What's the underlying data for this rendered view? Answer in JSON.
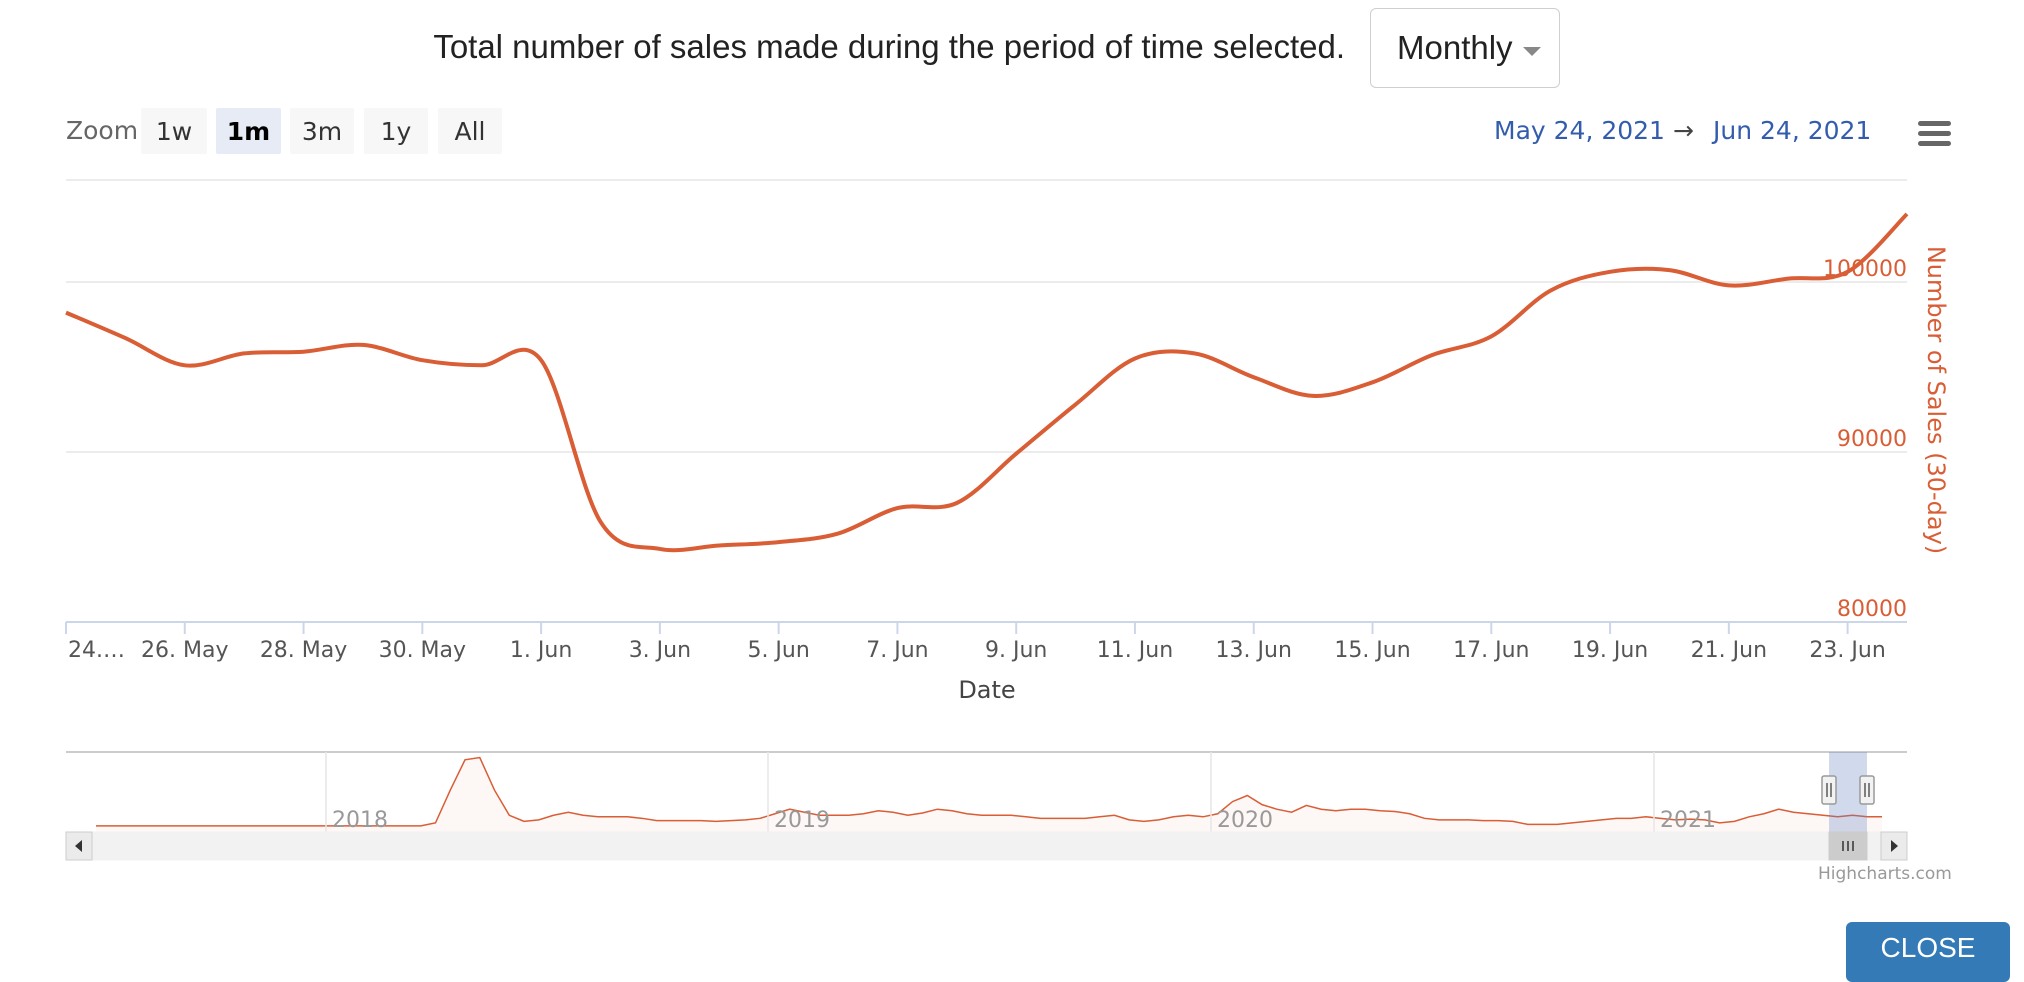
{
  "header": {
    "description": "Total number of sales made during the period of time selected.",
    "period_selected": "Monthly"
  },
  "toolbar": {
    "zoom_label": "Zoom",
    "zoom_buttons": [
      "1w",
      "1m",
      "3m",
      "1y",
      "All"
    ],
    "zoom_active": "1m",
    "range_from": "May 24, 2021",
    "range_arrow": "→",
    "range_to": "Jun 24, 2021"
  },
  "chart_data": {
    "type": "line",
    "title": "",
    "xlabel": "Date",
    "ylabel": "Number of Sales (30-day)",
    "ylim": [
      80000,
      106000
    ],
    "y_ticks": [
      80000,
      90000,
      100000
    ],
    "y_tick_labels": [
      "80000",
      "90000",
      "100000"
    ],
    "x_start": "2021-05-24",
    "x_end": "2021-06-24",
    "x_tick_dates": [
      "2021-05-24",
      "2021-05-26",
      "2021-05-28",
      "2021-05-30",
      "2021-06-01",
      "2021-06-03",
      "2021-06-05",
      "2021-06-07",
      "2021-06-09",
      "2021-06-11",
      "2021-06-13",
      "2021-06-15",
      "2021-06-17",
      "2021-06-19",
      "2021-06-21",
      "2021-06-23"
    ],
    "x_tick_labels": [
      "24.…",
      "26. May",
      "28. May",
      "30. May",
      "1. Jun",
      "3. Jun",
      "5. Jun",
      "7. Jun",
      "9. Jun",
      "11. Jun",
      "13. Jun",
      "15. Jun",
      "17. Jun",
      "19. Jun",
      "21. Jun",
      "23. Jun"
    ],
    "grid": true,
    "color": "#d95d35",
    "series": [
      {
        "x": [
          "2021-05-24",
          "2021-05-25",
          "2021-05-26",
          "2021-05-27",
          "2021-05-28",
          "2021-05-29",
          "2021-05-30",
          "2021-05-31",
          "2021-06-01",
          "2021-06-02",
          "2021-06-03",
          "2021-06-04",
          "2021-06-05",
          "2021-06-06",
          "2021-06-07",
          "2021-06-08",
          "2021-06-09",
          "2021-06-10",
          "2021-06-11",
          "2021-06-12",
          "2021-06-13",
          "2021-06-14",
          "2021-06-15",
          "2021-06-16",
          "2021-06-17",
          "2021-06-18",
          "2021-06-19",
          "2021-06-20",
          "2021-06-21",
          "2021-06-22",
          "2021-06-23",
          "2021-06-24"
        ],
        "y": [
          98200,
          96700,
          95100,
          95800,
          95900,
          96300,
          95400,
          95100,
          95400,
          85900,
          84300,
          84500,
          84700,
          85200,
          86700,
          87000,
          89900,
          92800,
          95500,
          95800,
          94400,
          93300,
          94100,
          95700,
          96800,
          99500,
          100600,
          100700,
          99800,
          100200,
          100600,
          104000
        ]
      }
    ]
  },
  "navigator": {
    "year_labels": [
      "2018",
      "2019",
      "2020",
      "2021"
    ],
    "series_relative": [
      0.08,
      0.08,
      0.08,
      0.08,
      0.08,
      0.08,
      0.08,
      0.08,
      0.08,
      0.08,
      0.08,
      0.08,
      0.08,
      0.08,
      0.08,
      0.08,
      0.08,
      0.08,
      0.08,
      0.08,
      0.08,
      0.08,
      0.08,
      0.12,
      0.55,
      0.95,
      0.98,
      0.55,
      0.22,
      0.14,
      0.16,
      0.22,
      0.26,
      0.22,
      0.2,
      0.2,
      0.2,
      0.18,
      0.15,
      0.15,
      0.15,
      0.15,
      0.14,
      0.15,
      0.16,
      0.18,
      0.24,
      0.3,
      0.26,
      0.22,
      0.22,
      0.22,
      0.24,
      0.28,
      0.26,
      0.22,
      0.25,
      0.3,
      0.28,
      0.24,
      0.22,
      0.22,
      0.22,
      0.2,
      0.18,
      0.18,
      0.18,
      0.18,
      0.2,
      0.22,
      0.16,
      0.14,
      0.16,
      0.2,
      0.22,
      0.2,
      0.24,
      0.4,
      0.48,
      0.36,
      0.3,
      0.26,
      0.35,
      0.3,
      0.28,
      0.3,
      0.3,
      0.28,
      0.27,
      0.24,
      0.18,
      0.16,
      0.16,
      0.16,
      0.15,
      0.15,
      0.14,
      0.1,
      0.1,
      0.1,
      0.12,
      0.14,
      0.16,
      0.18,
      0.18,
      0.2,
      0.18,
      0.16,
      0.17,
      0.16,
      0.12,
      0.14,
      0.2,
      0.24,
      0.3,
      0.26,
      0.24,
      0.22,
      0.2,
      0.22,
      0.2,
      0.2
    ]
  },
  "credits": "Highcharts.com",
  "actions": {
    "close_label": "CLOSE"
  }
}
